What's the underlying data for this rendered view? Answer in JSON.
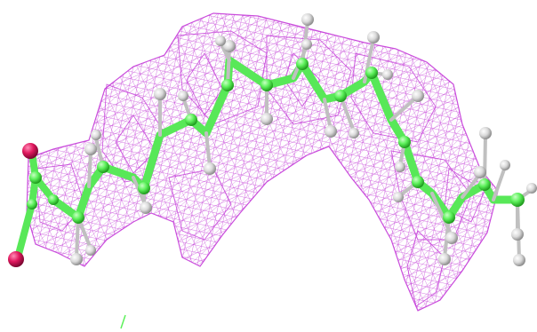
{
  "scene": {
    "background": "#ffffff",
    "density_mesh_color": "#c43ad8",
    "carbon_color": "#5cf05a",
    "oxygen_color": "#e0185e",
    "hydrogen_color": "#d8d8d8",
    "bond_color": "#58e858"
  }
}
